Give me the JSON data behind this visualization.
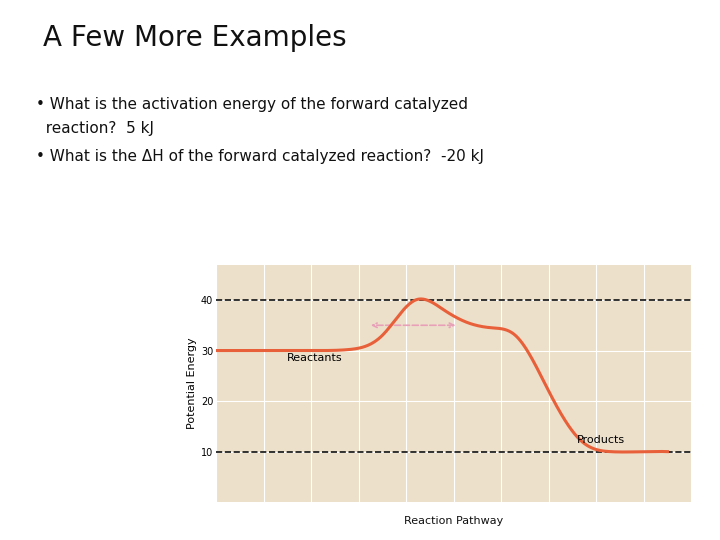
{
  "title": "A Few More Examples",
  "bullet1_part1": "What is the activation energy of the forward catalyzed",
  "bullet1_part2": "  reaction?  5 kJ",
  "bullet2": "What is the ΔH of the forward catalyzed reaction?  -20 kJ",
  "xlabel": "Reaction Pathway",
  "ylabel": "Potential Energy",
  "yticks": [
    10,
    20,
    30,
    40
  ],
  "ylim": [
    0,
    47
  ],
  "xlim": [
    0,
    10
  ],
  "reactants_label": "Reactants",
  "products_label": "Products",
  "bg_color": "#ffffff",
  "grid_color": "#ede0ca",
  "curve_color": "#e8603a",
  "dashed_color": "#111111",
  "pink_dashed_color": "#e8a0b8",
  "title_fontsize": 20,
  "bullet_fontsize": 11,
  "axis_label_fontsize": 8,
  "tick_fontsize": 7
}
